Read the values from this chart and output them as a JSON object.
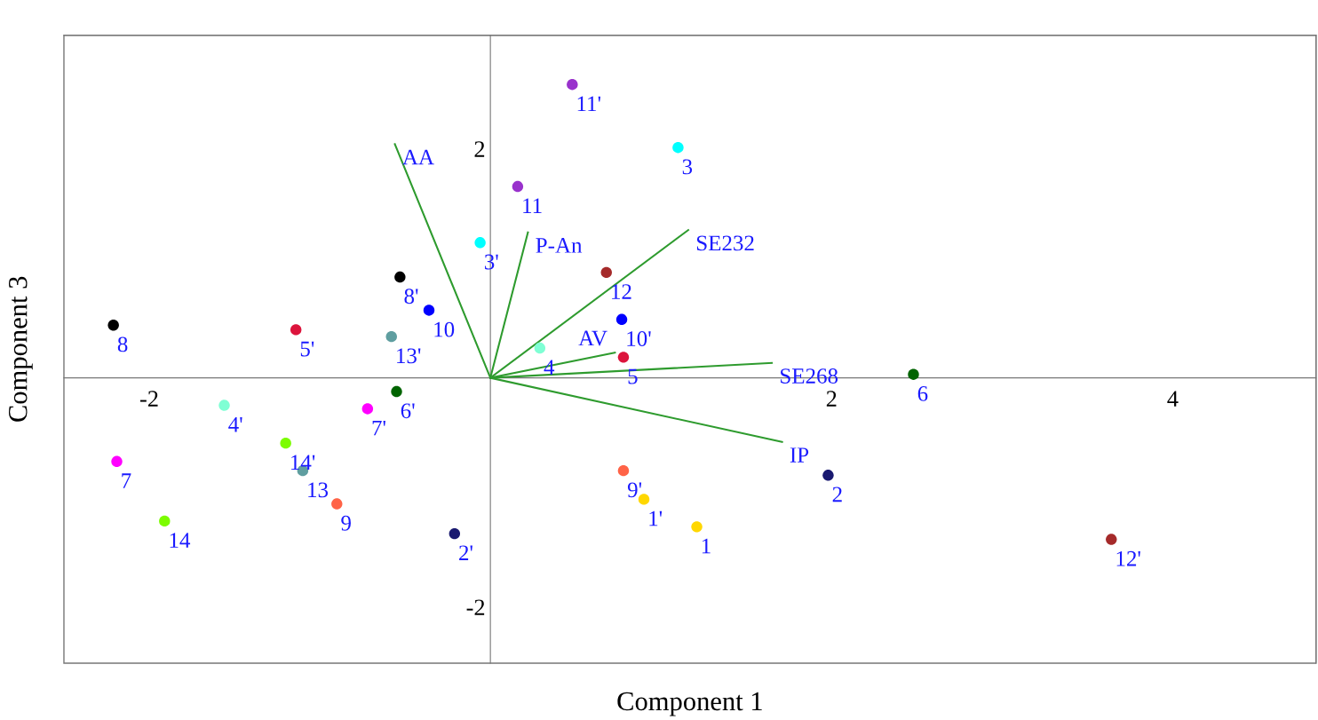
{
  "chart_data": {
    "type": "scatter",
    "xlabel": "Component 1",
    "ylabel": "Component 3",
    "xlim": [
      -2.5,
      4.84
    ],
    "ylim": [
      -2.49,
      2.99
    ],
    "xticks": [
      -2,
      2,
      4
    ],
    "yticks": [
      -2,
      2
    ],
    "grid": false,
    "series": [
      {
        "marker": "circle",
        "x": [
          -2.21,
          -1.14,
          -0.53,
          -0.36,
          -0.58,
          -0.55,
          -0.72,
          -1.56,
          -1.2,
          -1.1,
          -2.19,
          -1.91,
          -0.9,
          -0.21,
          -0.06,
          0.16,
          0.48,
          1.1,
          0.68,
          0.77,
          0.29,
          0.78,
          2.48,
          0.78,
          0.9,
          1.21,
          1.98,
          3.64
        ],
        "values": [
          0.46,
          0.42,
          0.88,
          0.59,
          0.36,
          -0.12,
          -0.27,
          -0.24,
          -0.57,
          -0.81,
          -0.73,
          -1.25,
          -1.1,
          -1.36,
          1.18,
          1.67,
          2.56,
          2.01,
          0.92,
          0.51,
          0.26,
          0.18,
          0.03,
          -0.81,
          -1.06,
          -1.3,
          -0.85,
          -1.41
        ],
        "colors": [
          "#000000",
          "#dc143c",
          "#000000",
          "#0000ff",
          "#5f9ea0",
          "#006400",
          "#ff00ff",
          "#7fffd4",
          "#7cfc00",
          "#5f9ea0",
          "#ff00ff",
          "#7cfc00",
          "#ff6347",
          "#191970",
          "#00ffff",
          "#9932cc",
          "#9932cc",
          "#00ffff",
          "#a52a2a",
          "#0000ff",
          "#7fffd4",
          "#dc143c",
          "#006400",
          "#ff6347",
          "#ffd700",
          "#ffd700",
          "#191970",
          "#a52a2a"
        ]
      },
      {
        "type": "line",
        "x": [
          0,
          -0.56
        ],
        "values": [
          0,
          2.04
        ],
        "color": "#2e9b2e"
      },
      {
        "type": "line",
        "x": [
          0,
          0.22
        ],
        "values": [
          0,
          1.27
        ],
        "color": "#2e9b2e"
      },
      {
        "type": "line",
        "x": [
          0,
          1.16
        ],
        "values": [
          0,
          1.29
        ],
        "color": "#2e9b2e"
      },
      {
        "type": "line",
        "x": [
          0,
          0.73
        ],
        "values": [
          0,
          0.22
        ],
        "color": "#2e9b2e"
      },
      {
        "type": "line",
        "x": [
          0,
          1.65
        ],
        "values": [
          0,
          0.13
        ],
        "color": "#2e9b2e"
      },
      {
        "type": "line",
        "x": [
          0,
          1.71
        ],
        "values": [
          0,
          -0.56
        ],
        "color": "#2e9b2e"
      }
    ],
    "annotations": [
      {
        "text": "8",
        "x": -2.21,
        "y": 0.46
      },
      {
        "text": "5'",
        "x": -1.14,
        "y": 0.42
      },
      {
        "text": "8'",
        "x": -0.53,
        "y": 0.88
      },
      {
        "text": "10",
        "x": -0.36,
        "y": 0.59
      },
      {
        "text": "13'",
        "x": -0.58,
        "y": 0.36
      },
      {
        "text": "6'",
        "x": -0.55,
        "y": -0.12
      },
      {
        "text": "7'",
        "x": -0.72,
        "y": -0.27
      },
      {
        "text": "4'",
        "x": -1.56,
        "y": -0.24
      },
      {
        "text": "14'",
        "x": -1.2,
        "y": -0.57
      },
      {
        "text": "13",
        "x": -1.1,
        "y": -0.81
      },
      {
        "text": "7",
        "x": -2.19,
        "y": -0.73
      },
      {
        "text": "14",
        "x": -1.91,
        "y": -1.25
      },
      {
        "text": "9",
        "x": -0.9,
        "y": -1.1
      },
      {
        "text": "2'",
        "x": -0.21,
        "y": -1.36
      },
      {
        "text": "3'",
        "x": -0.06,
        "y": 1.18
      },
      {
        "text": "11",
        "x": 0.16,
        "y": 1.67
      },
      {
        "text": "11'",
        "x": 0.48,
        "y": 2.56
      },
      {
        "text": "3",
        "x": 1.1,
        "y": 2.01
      },
      {
        "text": "12",
        "x": 0.68,
        "y": 0.92
      },
      {
        "text": "10'",
        "x": 0.77,
        "y": 0.51
      },
      {
        "text": "4",
        "x": 0.29,
        "y": 0.26
      },
      {
        "text": "5",
        "x": 0.78,
        "y": 0.18
      },
      {
        "text": "6",
        "x": 2.48,
        "y": 0.03
      },
      {
        "text": "9'",
        "x": 0.78,
        "y": -0.81
      },
      {
        "text": "1'",
        "x": 0.9,
        "y": -1.06
      },
      {
        "text": "1",
        "x": 1.21,
        "y": -1.3
      },
      {
        "text": "2",
        "x": 1.98,
        "y": -0.85
      },
      {
        "text": "12'",
        "x": 3.64,
        "y": -1.41
      },
      {
        "text": "AA",
        "x": -0.56,
        "y": 2.04
      },
      {
        "text": "P-An",
        "x": 0.22,
        "y": 1.27
      },
      {
        "text": "SE232",
        "x": 1.16,
        "y": 1.29
      },
      {
        "text": "AV",
        "x": 0.73,
        "y": 0.22
      },
      {
        "text": "SE268",
        "x": 1.65,
        "y": 0.13
      },
      {
        "text": "IP",
        "x": 1.71,
        "y": -0.56
      }
    ]
  }
}
